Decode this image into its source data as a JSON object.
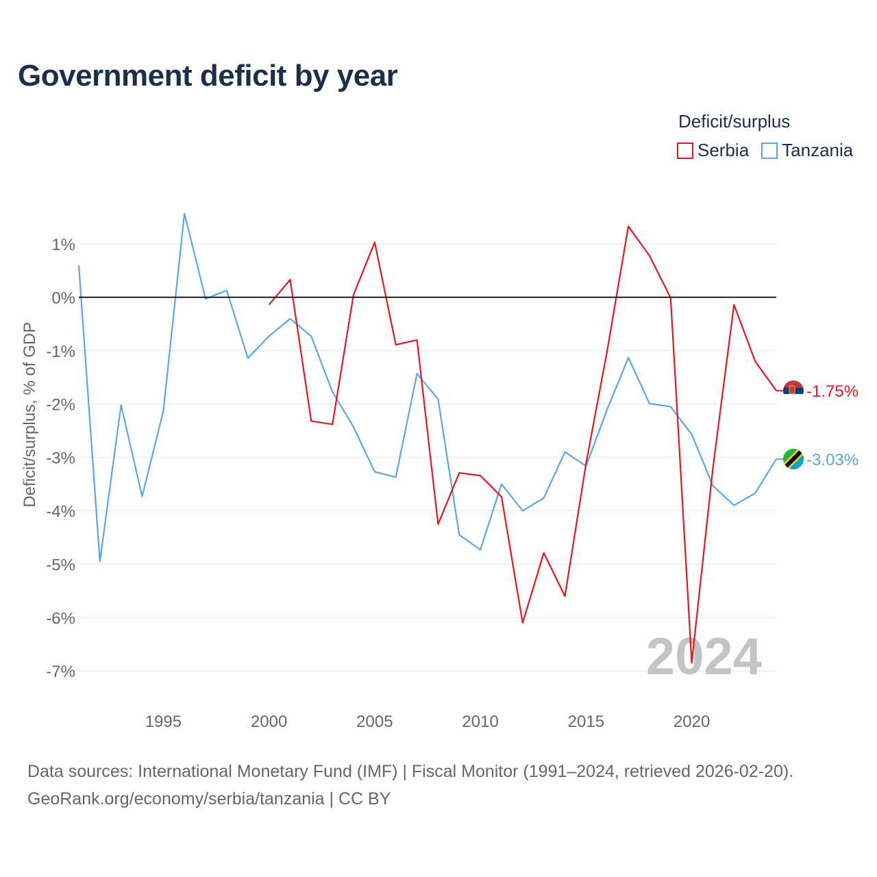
{
  "title": "Government deficit by year",
  "legend": {
    "title": "Deficit/surplus",
    "items": [
      {
        "label": "Serbia",
        "color": "#e8141c"
      },
      {
        "label": "Tanzania",
        "color": "#5aa6e6"
      }
    ]
  },
  "year_watermark": "2024",
  "footer": {
    "line1": "Data sources: International Monetary Fund (IMF) | Fiscal Monitor (1991–2024, retrieved 2026-02-20).",
    "line2": "GeoRank.org/economy/serbia/tanzania | CC BY"
  },
  "chart_data": {
    "type": "line",
    "title": "Government deficit by year",
    "xlabel": "",
    "ylabel": "Deficit/surplus, % of GDP",
    "xlim": [
      1991,
      2024
    ],
    "ylim": [
      -7.4,
      1.9
    ],
    "x_ticks": [
      1995,
      2000,
      2005,
      2010,
      2015,
      2020
    ],
    "y_ticks": [
      1,
      0,
      -1,
      -2,
      -3,
      -4,
      -5,
      -6,
      -7
    ],
    "y_tick_labels": [
      "1%",
      "0%",
      "-1%",
      "-2%",
      "-3%",
      "-4%",
      "-5%",
      "-6%",
      "-7%"
    ],
    "series": [
      {
        "name": "Serbia",
        "color": "#e8141c",
        "end_label": "-1.75%",
        "x": [
          2000,
          2001,
          2002,
          2003,
          2004,
          2005,
          2006,
          2007,
          2008,
          2009,
          2010,
          2011,
          2012,
          2013,
          2014,
          2015,
          2016,
          2017,
          2018,
          2019,
          2020,
          2021,
          2022,
          2023,
          2024
        ],
        "values": [
          -0.14,
          0.33,
          -2.32,
          -2.38,
          0.05,
          1.03,
          -0.89,
          -0.8,
          -4.25,
          -3.29,
          -3.34,
          -3.74,
          -6.1,
          -4.79,
          -5.6,
          -3.11,
          -1.0,
          1.33,
          0.78,
          -0.01,
          -6.85,
          -3.2,
          -0.14,
          -1.2,
          -1.75
        ]
      },
      {
        "name": "Tanzania",
        "color": "#5aa6e6",
        "end_label": "-3.03%",
        "x": [
          1991,
          1992,
          1993,
          1994,
          1995,
          1996,
          1997,
          1998,
          1999,
          2000,
          2001,
          2002,
          2003,
          2004,
          2005,
          2006,
          2007,
          2008,
          2009,
          2010,
          2011,
          2012,
          2013,
          2014,
          2015,
          2016,
          2017,
          2018,
          2019,
          2020,
          2021,
          2022,
          2023,
          2024
        ],
        "values": [
          0.6,
          -4.95,
          -2.02,
          -3.73,
          -2.13,
          1.57,
          -0.03,
          0.13,
          -1.14,
          -0.73,
          -0.4,
          -0.73,
          -1.77,
          -2.43,
          -3.27,
          -3.37,
          -1.43,
          -1.91,
          -4.45,
          -4.73,
          -3.5,
          -4.0,
          -3.76,
          -2.9,
          -3.16,
          -2.1,
          -1.13,
          -1.99,
          -2.05,
          -2.57,
          -3.53,
          -3.9,
          -3.67,
          -3.03
        ]
      }
    ],
    "zero_line": true,
    "grid": true,
    "legend_position": "top-right"
  }
}
